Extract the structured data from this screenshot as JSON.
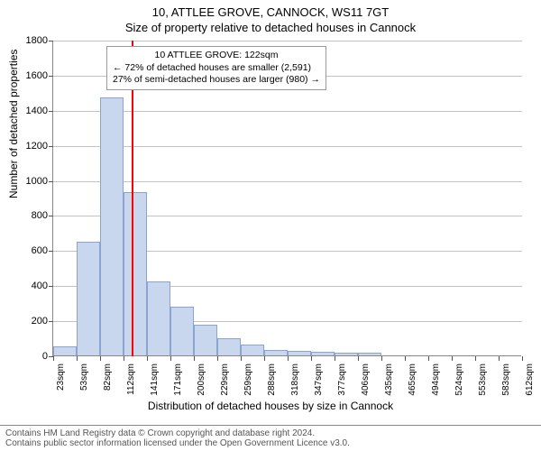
{
  "header": {
    "title": "10, ATTLEE GROVE, CANNOCK, WS11 7GT",
    "subtitle": "Size of property relative to detached houses in Cannock"
  },
  "chart": {
    "type": "histogram",
    "ylabel": "Number of detached properties",
    "xlabel": "Distribution of detached houses by size in Cannock",
    "ylim": [
      0,
      1800
    ],
    "yticks": [
      0,
      200,
      400,
      600,
      800,
      1000,
      1200,
      1400,
      1600,
      1800
    ],
    "xtick_labels": [
      "23sqm",
      "53sqm",
      "82sqm",
      "112sqm",
      "141sqm",
      "171sqm",
      "200sqm",
      "229sqm",
      "259sqm",
      "288sqm",
      "318sqm",
      "347sqm",
      "377sqm",
      "406sqm",
      "435sqm",
      "465sqm",
      "494sqm",
      "524sqm",
      "553sqm",
      "583sqm",
      "612sqm"
    ],
    "bars": [
      50,
      650,
      1470,
      930,
      420,
      280,
      175,
      100,
      60,
      30,
      25,
      20,
      15,
      15,
      0,
      0,
      0,
      0,
      0,
      0
    ],
    "bar_color": "#c9d7ee",
    "bar_border": "#8aa3cf",
    "grid_color": "#888888",
    "background_color": "#ffffff",
    "marker": {
      "position_sqm": 122,
      "color": "#ff0000"
    },
    "annotation": {
      "line1": "10 ATTLEE GROVE: 122sqm",
      "line2": "← 72% of detached houses are smaller (2,591)",
      "line3": "27% of semi-detached houses are larger (980) →"
    }
  },
  "footer": {
    "line1": "Contains HM Land Registry data © Crown copyright and database right 2024.",
    "line2": "Contains public sector information licensed under the Open Government Licence v3.0."
  }
}
